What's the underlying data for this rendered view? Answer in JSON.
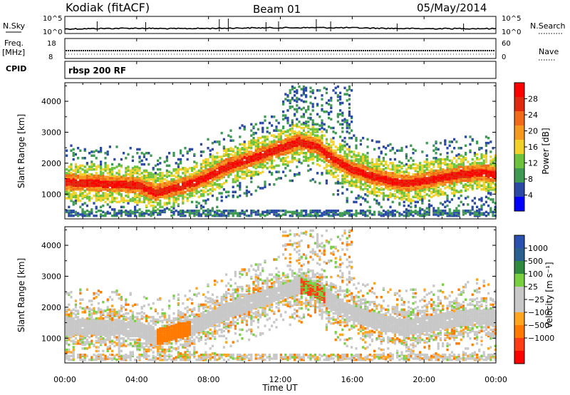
{
  "header": {
    "station": "Kodiak (fitACF)",
    "beam": "Beam 01",
    "date": "05/May/2014"
  },
  "colors": {
    "power_scale": [
      "#0000ff",
      "#2a4aa6",
      "#3e9a52",
      "#6cc23c",
      "#f0d22a",
      "#f59a1e",
      "#f06a17",
      "#e02a10",
      "#ff0000"
    ],
    "velocity_scale": [
      "#ff0000",
      "#ff3c14",
      "#ff7a00",
      "#ffa520",
      "#c8c8c8",
      "#c8c8c8",
      "#78d040",
      "#2e8a3c",
      "#2a6090",
      "#2a50b0"
    ]
  },
  "chart_data": [
    {
      "name": "nsky-nsearch",
      "type": "line",
      "left_label": "N.Sky",
      "right_label": "N.Search",
      "left_ticks": [
        "10^5",
        "10^0"
      ],
      "right_ticks": [
        "10^5",
        "10^0"
      ],
      "x": [
        "00:00",
        "02:00",
        "04:00",
        "06:00",
        "08:00",
        "10:00",
        "12:00",
        "14:00",
        "16:00",
        "18:00",
        "20:00",
        "22:00",
        "00:00"
      ],
      "values": [
        1.1,
        1.25,
        1.35,
        1.2,
        1.3,
        1.45,
        1.5,
        1.55,
        1.5,
        1.3,
        1.2,
        1.25,
        1.2
      ]
    },
    {
      "name": "freq-nave",
      "type": "line",
      "left_label": "Freq.",
      "left_unit": "[MHz]",
      "right_label": "Nave",
      "left_ticks": [
        "18",
        "8"
      ],
      "right_ticks": [
        "60",
        "0"
      ],
      "x": [
        "00:00",
        "12:00",
        "00:00"
      ],
      "values": [
        10.4,
        10.4,
        10.4
      ]
    },
    {
      "name": "cpid",
      "type": "table",
      "label": "CPID",
      "value": "rbsp 200 RF"
    },
    {
      "name": "power-rti",
      "type": "heatmap",
      "ylabel": "Slant Range [km]",
      "ylim": [
        200,
        4600
      ],
      "yticks": [
        "1000",
        "2000",
        "3000",
        "4000"
      ],
      "xlim": [
        0,
        24
      ],
      "colorbar_label": "Power [dB]",
      "colorbar_ticks": [
        "4",
        "8",
        "12",
        "16",
        "20",
        "24",
        "28"
      ],
      "colorbar_range": [
        0,
        32
      ],
      "backscatter_band_km": [
        [
          0,
          1400
        ],
        [
          2,
          1350
        ],
        [
          4,
          1300
        ],
        [
          5,
          1050
        ],
        [
          6,
          1200
        ],
        [
          7,
          1350
        ],
        [
          8,
          1600
        ],
        [
          9,
          1900
        ],
        [
          10,
          2100
        ],
        [
          11,
          2300
        ],
        [
          12,
          2500
        ],
        [
          13,
          2700
        ],
        [
          14,
          2550
        ],
        [
          15,
          2100
        ],
        [
          16,
          1800
        ],
        [
          17,
          1600
        ],
        [
          18,
          1450
        ],
        [
          19,
          1350
        ],
        [
          20,
          1450
        ],
        [
          21,
          1550
        ],
        [
          22,
          1650
        ],
        [
          23,
          1700
        ],
        [
          24,
          1650
        ]
      ]
    },
    {
      "name": "velocity-rti",
      "type": "heatmap",
      "ylabel": "Slant Range [km]",
      "ylim": [
        200,
        4600
      ],
      "yticks": [
        "1000",
        "2000",
        "3000",
        "4000"
      ],
      "xlim": [
        0,
        24
      ],
      "colorbar_label": "Velocity [m s⁻¹]",
      "colorbar_ticks": [
        "1000",
        "500",
        "100",
        "25",
        "−25",
        "−100",
        "−500",
        "−1000"
      ]
    }
  ],
  "xaxis": {
    "ticks": [
      "00:00",
      "04:00",
      "08:00",
      "12:00",
      "16:00",
      "20:00",
      "00:00"
    ],
    "label": "Time UT"
  }
}
